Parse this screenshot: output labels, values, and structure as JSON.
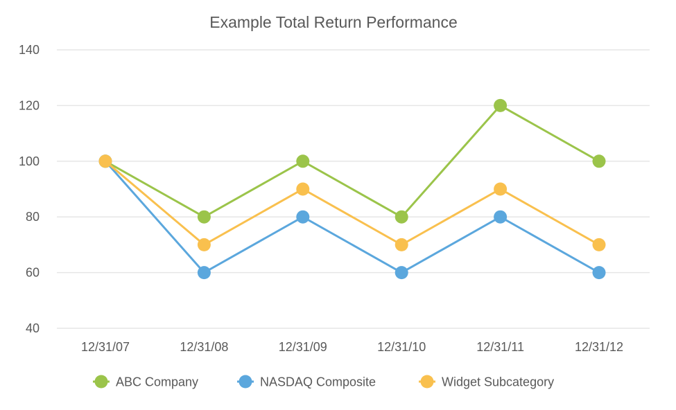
{
  "chart_data": {
    "type": "line",
    "title": "Example Total Return Performance",
    "xlabel": "",
    "ylabel": "",
    "categories": [
      "12/31/07",
      "12/31/08",
      "12/31/09",
      "12/31/10",
      "12/31/11",
      "12/31/12"
    ],
    "ylim": [
      40,
      140
    ],
    "yticks": [
      40,
      60,
      80,
      100,
      120,
      140
    ],
    "grid": true,
    "legend_position": "bottom",
    "series": [
      {
        "name": "ABC Company",
        "color": "#9bc44a",
        "values": [
          100,
          80,
          100,
          80,
          120,
          100
        ]
      },
      {
        "name": "NASDAQ Composite",
        "color": "#5ba7dd",
        "values": [
          100,
          60,
          80,
          60,
          80,
          60
        ]
      },
      {
        "name": "Widget Subcategory",
        "color": "#f9c04e",
        "values": [
          100,
          70,
          90,
          70,
          90,
          70
        ]
      }
    ]
  }
}
